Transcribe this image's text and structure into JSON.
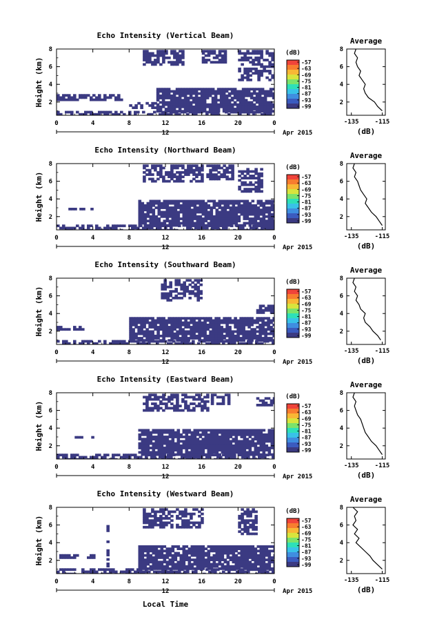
{
  "figure": {
    "xlabel": "Local Time",
    "date_label": "Apr 2015",
    "day_label": "12",
    "colorbar_unit": "(dB)",
    "avg_title": "Average",
    "avg_xlabel": "(dB)"
  },
  "colors": {
    "white": "#ffffff",
    "ramp": [
      "#3b3a82",
      "#3b5bbf",
      "#3f8ee0",
      "#39c2e8",
      "#2ee0b8",
      "#7be36b",
      "#d8e43d",
      "#f8b735",
      "#f87d2f",
      "#f0443a"
    ]
  },
  "colorbar_ticks": [
    "-57",
    "-63",
    "-69",
    "-75",
    "-81",
    "-87",
    "-93",
    "-99"
  ],
  "chart_data": [
    {
      "type": "heatmap",
      "title": "Echo Intensity (Vertical Beam)",
      "ylabel": "Height (km)",
      "x_ticks": [
        "0",
        "4",
        "8",
        "12",
        "16",
        "20",
        "0"
      ],
      "y_ticks": [
        "2",
        "4",
        "6",
        "8"
      ],
      "xlim": [
        0,
        24
      ],
      "ylim": [
        0.5,
        8
      ],
      "colorbar": {
        "unit": "dB",
        "range": [
          -99,
          -57
        ]
      },
      "echo_regions": [
        {
          "t": [
            0,
            24
          ],
          "h": [
            0.5,
            1.0
          ],
          "level": -99
        },
        {
          "t": [
            0,
            7
          ],
          "h": [
            2.2,
            2.9
          ],
          "level": -99
        },
        {
          "t": [
            8,
            11
          ],
          "h": [
            1.4,
            2.0
          ],
          "level": -99
        },
        {
          "t": [
            11,
            24
          ],
          "h": [
            1.0,
            3.6
          ],
          "level": -99
        },
        {
          "t": [
            9.5,
            14
          ],
          "h": [
            6.2,
            7.9
          ],
          "level": -99
        },
        {
          "t": [
            16,
            18.5
          ],
          "h": [
            6.5,
            7.9
          ],
          "level": -99
        },
        {
          "t": [
            20,
            24
          ],
          "h": [
            4.6,
            7.9
          ],
          "level": -99
        }
      ],
      "average": {
        "x_ticks": [
          "-135",
          "-115"
        ],
        "xlim": [
          -138,
          -113
        ],
        "y_ticks": [
          "2",
          "4",
          "6",
          "8"
        ],
        "ylim": [
          0.5,
          8
        ],
        "x": [
          -115,
          -118,
          -120,
          -124,
          -126,
          -127,
          -126,
          -128,
          -130,
          -129,
          -131,
          -132,
          -131,
          -133,
          -132
        ],
        "y": [
          1.0,
          1.5,
          2.0,
          2.5,
          3.0,
          3.5,
          4.0,
          4.5,
          5.0,
          5.5,
          6.0,
          6.5,
          7.0,
          7.5,
          8.0
        ]
      }
    },
    {
      "type": "heatmap",
      "title": "Echo Intensity (Northward Beam)",
      "ylabel": "Height (km)",
      "x_ticks": [
        "0",
        "4",
        "8",
        "12",
        "16",
        "20",
        "0"
      ],
      "y_ticks": [
        "2",
        "4",
        "6",
        "8"
      ],
      "xlim": [
        0,
        24
      ],
      "ylim": [
        0.5,
        8
      ],
      "colorbar": {
        "unit": "dB",
        "range": [
          -99,
          -57
        ]
      },
      "echo_regions": [
        {
          "t": [
            0,
            24
          ],
          "h": [
            0.5,
            1.1
          ],
          "level": -99
        },
        {
          "t": [
            1,
            4
          ],
          "h": [
            2.8,
            3.0
          ],
          "level": -99
        },
        {
          "t": [
            9,
            24
          ],
          "h": [
            1.0,
            3.9
          ],
          "level": -99
        },
        {
          "t": [
            9.5,
            16
          ],
          "h": [
            6.0,
            7.9
          ],
          "level": -99
        },
        {
          "t": [
            16.5,
            19.5
          ],
          "h": [
            6.2,
            7.9
          ],
          "level": -99
        },
        {
          "t": [
            20,
            22.5
          ],
          "h": [
            5.0,
            7.5
          ],
          "level": -99
        }
      ],
      "average": {
        "x_ticks": [
          "-135",
          "-115"
        ],
        "xlim": [
          -138,
          -113
        ],
        "y_ticks": [
          "2",
          "4",
          "6",
          "8"
        ],
        "ylim": [
          0.5,
          8
        ],
        "x": [
          -115,
          -117,
          -119,
          -122,
          -124,
          -126,
          -125,
          -127,
          -129,
          -130,
          -131,
          -133,
          -132,
          -134,
          -133
        ],
        "y": [
          1.0,
          1.5,
          2.0,
          2.5,
          3.0,
          3.5,
          4.0,
          4.5,
          5.0,
          5.5,
          6.0,
          6.5,
          7.0,
          7.5,
          8.0
        ]
      }
    },
    {
      "type": "heatmap",
      "title": "Echo Intensity (Southward Beam)",
      "ylabel": "Height (km)",
      "x_ticks": [
        "0",
        "4",
        "8",
        "12",
        "16",
        "20",
        "0"
      ],
      "y_ticks": [
        "2",
        "4",
        "6",
        "8"
      ],
      "xlim": [
        0,
        24
      ],
      "ylim": [
        0.5,
        8
      ],
      "colorbar": {
        "unit": "dB",
        "range": [
          -99,
          -57
        ]
      },
      "echo_regions": [
        {
          "t": [
            0,
            24
          ],
          "h": [
            0.5,
            1.0
          ],
          "level": -99
        },
        {
          "t": [
            0,
            3
          ],
          "h": [
            2.2,
            2.6
          ],
          "level": -99
        },
        {
          "t": [
            8,
            24
          ],
          "h": [
            1.0,
            3.6
          ],
          "level": -99
        },
        {
          "t": [
            11.5,
            16
          ],
          "h": [
            5.5,
            7.9
          ],
          "level": -99
        },
        {
          "t": [
            22,
            24
          ],
          "h": [
            4.2,
            5.0
          ],
          "level": -99
        }
      ],
      "average": {
        "x_ticks": [
          "-135",
          "-115"
        ],
        "xlim": [
          -138,
          -113
        ],
        "y_ticks": [
          "2",
          "4",
          "6",
          "8"
        ],
        "ylim": [
          0.5,
          8
        ],
        "x": [
          -116,
          -118,
          -121,
          -123,
          -126,
          -127,
          -126,
          -129,
          -130,
          -132,
          -131,
          -133,
          -132,
          -134,
          -133
        ],
        "y": [
          1.0,
          1.5,
          2.0,
          2.5,
          3.0,
          3.5,
          4.0,
          4.5,
          5.0,
          5.5,
          6.0,
          6.5,
          7.0,
          7.5,
          8.0
        ]
      }
    },
    {
      "type": "heatmap",
      "title": "Echo Intensity (Eastward Beam)",
      "ylabel": "Height (km)",
      "x_ticks": [
        "0",
        "4",
        "8",
        "12",
        "16",
        "20",
        "0"
      ],
      "y_ticks": [
        "2",
        "4",
        "6",
        "8"
      ],
      "xlim": [
        0,
        24
      ],
      "ylim": [
        0.5,
        8
      ],
      "colorbar": {
        "unit": "dB",
        "range": [
          -99,
          -57
        ]
      },
      "echo_regions": [
        {
          "t": [
            0,
            24
          ],
          "h": [
            0.5,
            1.1
          ],
          "level": -99
        },
        {
          "t": [
            2,
            4
          ],
          "h": [
            2.9,
            3.1
          ],
          "level": -99
        },
        {
          "t": [
            9,
            24
          ],
          "h": [
            1.0,
            3.9
          ],
          "level": -99
        },
        {
          "t": [
            9.5,
            16.5
          ],
          "h": [
            6.0,
            7.9
          ],
          "level": -99
        },
        {
          "t": [
            17,
            19
          ],
          "h": [
            6.8,
            7.9
          ],
          "level": -99
        },
        {
          "t": [
            22,
            24
          ],
          "h": [
            6.5,
            7.5
          ],
          "level": -99
        }
      ],
      "average": {
        "x_ticks": [
          "-135",
          "-115"
        ],
        "xlim": [
          -138,
          -113
        ],
        "y_ticks": [
          "2",
          "4",
          "6",
          "8"
        ],
        "ylim": [
          0.5,
          8
        ],
        "x": [
          -115,
          -117,
          -119,
          -122,
          -124,
          -126,
          -127,
          -128,
          -129,
          -131,
          -132,
          -133,
          -132,
          -134,
          -133
        ],
        "y": [
          1.0,
          1.5,
          2.0,
          2.5,
          3.0,
          3.5,
          4.0,
          4.5,
          5.0,
          5.5,
          6.0,
          6.5,
          7.0,
          7.5,
          8.0
        ]
      }
    },
    {
      "type": "heatmap",
      "title": "Echo Intensity (Westward Beam)",
      "ylabel": "Height (km)",
      "x_ticks": [
        "0",
        "4",
        "8",
        "12",
        "16",
        "20",
        "0"
      ],
      "y_ticks": [
        "2",
        "4",
        "6",
        "8"
      ],
      "xlim": [
        0,
        24
      ],
      "ylim": [
        0.5,
        8
      ],
      "colorbar": {
        "unit": "dB",
        "range": [
          -99,
          -57
        ]
      },
      "echo_regions": [
        {
          "t": [
            0,
            24
          ],
          "h": [
            0.5,
            1.1
          ],
          "level": -99
        },
        {
          "t": [
            0,
            4
          ],
          "h": [
            2.4,
            2.7
          ],
          "level": -99
        },
        {
          "t": [
            5.5,
            5.7
          ],
          "h": [
            0.5,
            6.0
          ],
          "level": -99
        },
        {
          "t": [
            9,
            24
          ],
          "h": [
            1.0,
            3.7
          ],
          "level": -99
        },
        {
          "t": [
            9.5,
            16
          ],
          "h": [
            5.8,
            7.9
          ],
          "level": -99
        },
        {
          "t": [
            20,
            22
          ],
          "h": [
            5.0,
            7.9
          ],
          "level": -99
        }
      ],
      "average": {
        "x_ticks": [
          "-135",
          "-115"
        ],
        "xlim": [
          -138,
          -113
        ],
        "y_ticks": [
          "2",
          "4",
          "6",
          "8"
        ],
        "ylim": [
          0.5,
          8
        ],
        "x": [
          -115,
          -118,
          -121,
          -123,
          -126,
          -129,
          -132,
          -130,
          -133,
          -131,
          -134,
          -132,
          -133,
          -131,
          -134
        ],
        "y": [
          1.0,
          1.5,
          2.0,
          2.5,
          3.0,
          3.5,
          4.0,
          4.5,
          5.0,
          5.5,
          6.0,
          6.5,
          7.0,
          7.5,
          8.0
        ]
      }
    }
  ]
}
